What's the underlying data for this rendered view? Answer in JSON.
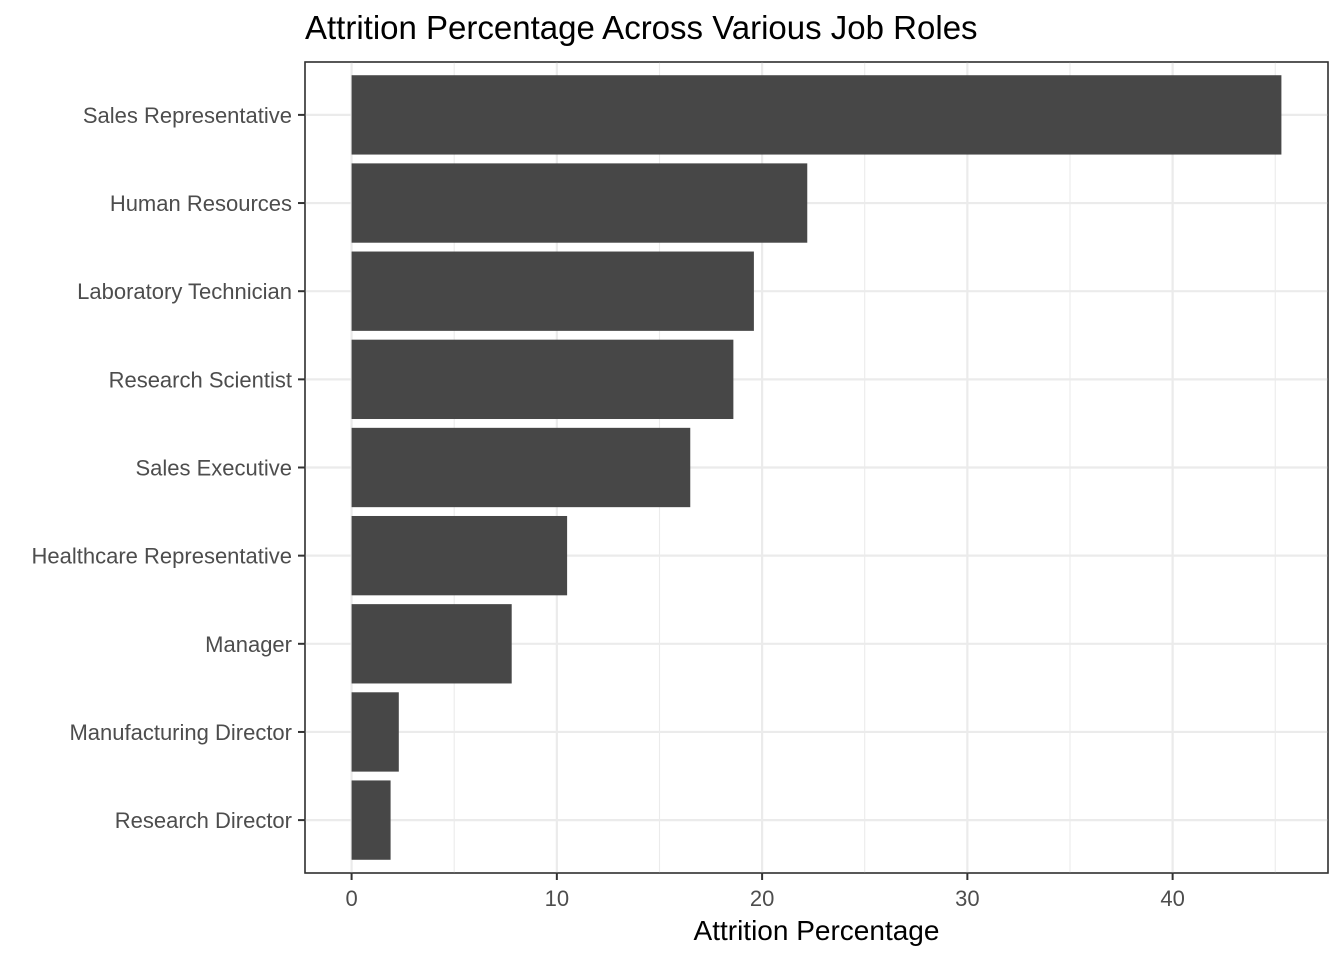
{
  "chart_data": {
    "type": "bar",
    "orientation": "horizontal",
    "title": "Attrition Percentage Across Various Job Roles",
    "xlabel": "Attrition Percentage",
    "ylabel": "",
    "categories": [
      "Sales Representative",
      "Human Resources",
      "Laboratory Technician",
      "Research Scientist",
      "Sales Executive",
      "Healthcare Representative",
      "Manager",
      "Manufacturing Director",
      "Research Director"
    ],
    "values": [
      45.3,
      22.2,
      19.6,
      18.6,
      16.5,
      10.5,
      7.8,
      2.3,
      1.9
    ],
    "xlim": [
      -2.27,
      47.57
    ],
    "xticks": [
      0,
      10,
      20,
      30,
      40
    ],
    "xtick_labels": [
      "0",
      "10",
      "20",
      "30",
      "40"
    ],
    "grid": true,
    "bar_color": "#474747",
    "legend": "none"
  }
}
